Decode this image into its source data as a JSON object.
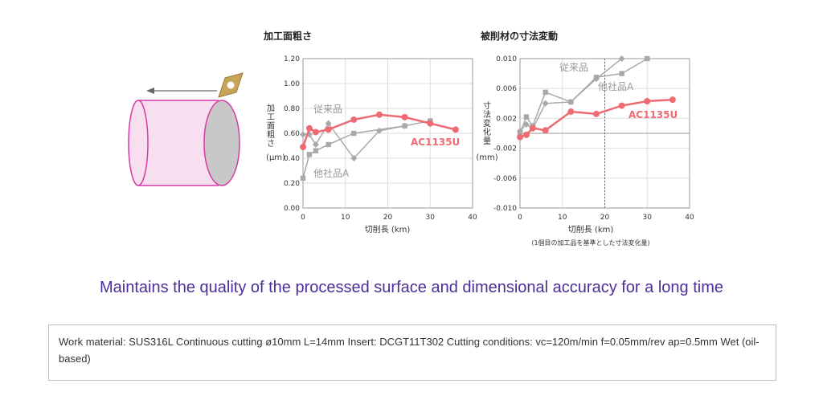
{
  "illustration": {
    "icons": [
      "workpiece-cylinder-icon",
      "insert-tool-icon",
      "feed-arrow-icon"
    ],
    "colors": {
      "workpiece": "#f7dff0",
      "workpiece_edge": "#d63aa6",
      "insert": "#c8a35a",
      "insert_hole": "#ffffff"
    }
  },
  "colors": {
    "ac1135u": "#ee6b73",
    "competitor": "#a8a8a8",
    "grid": "#dddddd",
    "headline": "#4b2e9a"
  },
  "chart_data": [
    {
      "type": "line",
      "title": "加工面粗さ",
      "xlabel": "切削長 (km)",
      "ylabel": "加工面粗さ",
      "yunit": "(μm)",
      "xlim": [
        0,
        40
      ],
      "ylim": [
        0,
        1.2
      ],
      "xticks": [
        "0",
        "10",
        "20",
        "30",
        "40"
      ],
      "yticks": [
        "0.00",
        "0.20",
        "0.40",
        "0.60",
        "0.80",
        "1.00",
        "1.20"
      ],
      "grid": true,
      "series": [
        {
          "name": "従来品",
          "color": "#a8a8a8",
          "marker": "square",
          "x": [
            0,
            1.5,
            3,
            6,
            12,
            24,
            30
          ],
          "y": [
            0.24,
            0.43,
            0.46,
            0.51,
            0.6,
            0.66,
            0.7
          ]
        },
        {
          "name": "他社品A",
          "color": "#a8a8a8",
          "marker": "diamond",
          "x": [
            0,
            1.5,
            3,
            6,
            12,
            18,
            24
          ],
          "y": [
            0.59,
            0.59,
            0.51,
            0.68,
            0.4,
            0.62,
            0.66
          ]
        },
        {
          "name": "AC1135U",
          "color": "#ee6b73",
          "marker": "circle",
          "x": [
            0,
            1.5,
            3,
            6,
            12,
            18,
            24,
            30,
            36
          ],
          "y": [
            0.49,
            0.64,
            0.61,
            0.63,
            0.71,
            0.75,
            0.73,
            0.68,
            0.63
          ]
        }
      ],
      "labels": {
        "series0": "従来品",
        "series1": "他社品A",
        "series2": "AC1135U"
      }
    },
    {
      "type": "line",
      "title": "被削材の寸法変動",
      "xlabel": "切削長 (km)",
      "ylabel": "寸法変化量",
      "yunit": "(mm)",
      "note": "(1個目の加工品を基準とした寸法変化量)",
      "xlim": [
        0,
        40
      ],
      "ylim": [
        -0.01,
        0.01
      ],
      "xticks": [
        "0",
        "10",
        "20",
        "30",
        "40"
      ],
      "yticks": [
        "-0.010",
        "-0.006",
        "-0.002",
        "0.002",
        "0.006",
        "0.010"
      ],
      "grid": true,
      "series": [
        {
          "name": "従来品",
          "color": "#a8a8a8",
          "marker": "square",
          "x": [
            0,
            1.5,
            3,
            6,
            12,
            18,
            24,
            30
          ],
          "y": [
            0.0001,
            0.0022,
            0.001,
            0.0055,
            0.0042,
            0.0075,
            0.008,
            0.01
          ]
        },
        {
          "name": "他社品A",
          "color": "#a8a8a8",
          "marker": "diamond",
          "x": [
            0,
            1.5,
            3,
            6,
            12,
            18,
            24
          ],
          "y": [
            0.0003,
            0.0012,
            0.0006,
            0.004,
            0.0042,
            0.0073,
            0.01
          ]
        },
        {
          "name": "AC1135U",
          "color": "#ee6b73",
          "marker": "circle",
          "x": [
            0,
            1.5,
            3,
            6,
            12,
            18,
            24,
            30,
            36
          ],
          "y": [
            -0.0005,
            -0.0002,
            0.0007,
            0.0004,
            0.0029,
            0.0026,
            0.0037,
            0.0043,
            0.0045
          ]
        }
      ],
      "reference_x": 20,
      "labels": {
        "series0": "従来品",
        "series1": "他社品A",
        "series2": "AC1135U"
      }
    }
  ],
  "headline": "Maintains the quality of the processed surface and dimensional accuracy for a long time",
  "conditions": "Work material: SUS316L Continuous cutting ø10mm L=14mm Insert: DCGT11T302 Cutting conditions: vc=120m/min f=0.05mm/rev ap=0.5mm Wet (oil-based)"
}
